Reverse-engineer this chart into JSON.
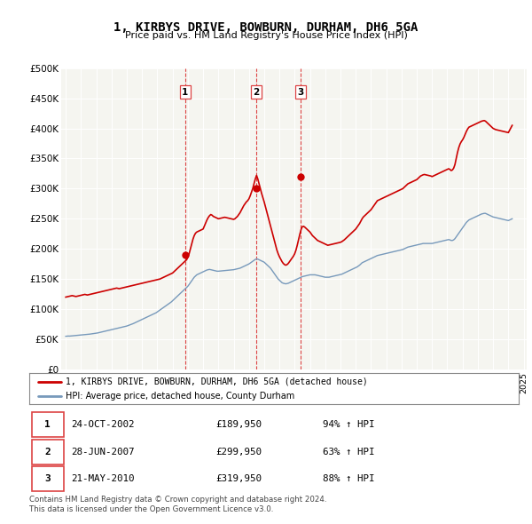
{
  "title": "1, KIRBYS DRIVE, BOWBURN, DURHAM, DH6 5GA",
  "subtitle": "Price paid vs. HM Land Registry's House Price Index (HPI)",
  "background_color": "#ffffff",
  "plot_bg_color": "#f5f5f0",
  "red_color": "#cc0000",
  "blue_color": "#7799bb",
  "vline_color": "#dd4444",
  "legend_label_red": "1, KIRBYS DRIVE, BOWBURN, DURHAM, DH6 5GA (detached house)",
  "legend_label_blue": "HPI: Average price, detached house, County Durham",
  "ylim": [
    0,
    500000
  ],
  "yticks": [
    0,
    50000,
    100000,
    150000,
    200000,
    250000,
    300000,
    350000,
    400000,
    450000,
    500000
  ],
  "ytick_labels": [
    "£0",
    "£50K",
    "£100K",
    "£150K",
    "£200K",
    "£250K",
    "£300K",
    "£350K",
    "£400K",
    "£450K",
    "£500K"
  ],
  "transactions": [
    {
      "num": 1,
      "date": "24-OCT-2002",
      "price": 189950,
      "pct": "94%",
      "dir": "↑",
      "x": 2002.82
    },
    {
      "num": 2,
      "date": "28-JUN-2007",
      "price": 299950,
      "pct": "63%",
      "dir": "↑",
      "x": 2007.49
    },
    {
      "num": 3,
      "date": "21-MAY-2010",
      "price": 319950,
      "pct": "88%",
      "dir": "↑",
      "x": 2010.38
    }
  ],
  "footer_line1": "Contains HM Land Registry data © Crown copyright and database right 2024.",
  "footer_line2": "This data is licensed under the Open Government Licence v3.0.",
  "hpi_y_by_year": {
    "1995": [
      55000,
      55200,
      55400,
      55300,
      55500,
      55700,
      55900,
      56100,
      56300,
      56500,
      56700,
      56900
    ],
    "1996": [
      57100,
      57300,
      57500,
      57700,
      57900,
      58100,
      58300,
      58600,
      58900,
      59200,
      59500,
      59800
    ],
    "1997": [
      60100,
      60500,
      61000,
      61500,
      62000,
      62500,
      63000,
      63500,
      64000,
      64500,
      65000,
      65500
    ],
    "1998": [
      66000,
      66500,
      67000,
      67500,
      68000,
      68500,
      69000,
      69500,
      70000,
      70500,
      71000,
      71500
    ],
    "1999": [
      72000,
      72800,
      73600,
      74400,
      75200,
      76000,
      77000,
      78000,
      79000,
      80000,
      81000,
      82000
    ],
    "2000": [
      83000,
      84000,
      85000,
      86000,
      87000,
      88000,
      89000,
      90000,
      91000,
      92000,
      93000,
      94000
    ],
    "2001": [
      95500,
      97000,
      98500,
      100000,
      101500,
      103000,
      104500,
      106000,
      107500,
      109000,
      110500,
      112000
    ],
    "2002": [
      114000,
      116000,
      118000,
      120000,
      122000,
      124000,
      126000,
      128000,
      130000,
      132000,
      134000,
      136000
    ],
    "2003": [
      138000,
      141000,
      144000,
      147000,
      150000,
      153000,
      155000,
      157000,
      158000,
      159000,
      160000,
      161000
    ],
    "2004": [
      162000,
      163000,
      164000,
      165000,
      165500,
      166000,
      165500,
      165000,
      164500,
      164000,
      163500,
      163000
    ],
    "2005": [
      163000,
      163200,
      163400,
      163600,
      163800,
      164000,
      164200,
      164400,
      164600,
      164800,
      165000,
      165200
    ],
    "2006": [
      165500,
      166000,
      166500,
      167000,
      167500,
      168000,
      169000,
      170000,
      171000,
      172000,
      173000,
      174000
    ],
    "2007": [
      175000,
      176500,
      178000,
      179500,
      181000,
      182500,
      183500,
      183000,
      182000,
      181000,
      180000,
      179000
    ],
    "2008": [
      178000,
      176000,
      174000,
      172000,
      170000,
      168000,
      165000,
      162000,
      159000,
      156000,
      153000,
      150000
    ],
    "2009": [
      148000,
      146000,
      144000,
      143000,
      142500,
      142000,
      142500,
      143000,
      144000,
      145000,
      146000,
      147000
    ],
    "2010": [
      148000,
      149000,
      150000,
      151000,
      152000,
      153000,
      154000,
      154500,
      155000,
      155500,
      156000,
      156500
    ],
    "2011": [
      157000,
      157000,
      157000,
      157000,
      157000,
      156500,
      156000,
      155500,
      155000,
      154500,
      154000,
      153500
    ],
    "2012": [
      153000,
      153000,
      153000,
      153000,
      153500,
      154000,
      154500,
      155000,
      155500,
      156000,
      156500,
      157000
    ],
    "2013": [
      157500,
      158000,
      159000,
      160000,
      161000,
      162000,
      163000,
      164000,
      165000,
      166000,
      167000,
      168000
    ],
    "2014": [
      169000,
      170000,
      171500,
      173000,
      175000,
      177000,
      178000,
      179000,
      180000,
      181000,
      182000,
      183000
    ],
    "2015": [
      184000,
      185000,
      186000,
      187000,
      188000,
      189000,
      189500,
      190000,
      190500,
      191000,
      191500,
      192000
    ],
    "2016": [
      192500,
      193000,
      193500,
      194000,
      194500,
      195000,
      195500,
      196000,
      196500,
      197000,
      197500,
      198000
    ],
    "2017": [
      198500,
      199000,
      200000,
      201000,
      202000,
      203000,
      203500,
      204000,
      204500,
      205000,
      205500,
      206000
    ],
    "2018": [
      206500,
      207000,
      207500,
      208000,
      208500,
      209000,
      209000,
      209000,
      209000,
      209000,
      209000,
      209000
    ],
    "2019": [
      209000,
      209500,
      210000,
      210500,
      211000,
      211500,
      212000,
      212500,
      213000,
      213500,
      214000,
      214500
    ],
    "2020": [
      215000,
      215500,
      215000,
      214000,
      214000,
      215000,
      217000,
      220000,
      223000,
      226000,
      229000,
      232000
    ],
    "2021": [
      235000,
      238000,
      241000,
      244000,
      246000,
      248000,
      249000,
      250000,
      251000,
      252000,
      253000,
      254000
    ],
    "2022": [
      255000,
      256000,
      257000,
      258000,
      258500,
      259000,
      259000,
      258000,
      257000,
      256000,
      255000,
      254000
    ],
    "2023": [
      253000,
      252500,
      252000,
      251500,
      251000,
      250500,
      250000,
      249500,
      249000,
      248500,
      248000,
      247500
    ],
    "2024": [
      247000,
      248000,
      249000,
      250000
    ]
  },
  "red_y_by_year": {
    "1995": [
      120000,
      120500,
      121000,
      121500,
      122000,
      122500,
      122000,
      121500,
      121000,
      121500,
      122000,
      122500
    ],
    "1996": [
      123000,
      123500,
      124000,
      124500,
      124000,
      123500,
      124000,
      124500,
      125000,
      125500,
      126000,
      126500
    ],
    "1997": [
      127000,
      127500,
      128000,
      128500,
      129000,
      129500,
      130000,
      130500,
      131000,
      131500,
      132000,
      132500
    ],
    "1998": [
      133000,
      133500,
      134000,
      134500,
      135000,
      134500,
      134000,
      134500,
      135000,
      135500,
      136000,
      136500
    ],
    "1999": [
      137000,
      137500,
      138000,
      138500,
      139000,
      139500,
      140000,
      140500,
      141000,
      141500,
      142000,
      142500
    ],
    "2000": [
      143000,
      143500,
      144000,
      144500,
      145000,
      145500,
      146000,
      146500,
      147000,
      147500,
      148000,
      148500
    ],
    "2001": [
      149000,
      149500,
      150000,
      151000,
      152000,
      153000,
      154000,
      155000,
      156000,
      157000,
      158000,
      159000
    ],
    "2002": [
      160000,
      162000,
      164000,
      166000,
      168000,
      170000,
      172000,
      174000,
      176000,
      178000,
      180000,
      182000
    ],
    "2003": [
      186000,
      192000,
      200000,
      208000,
      216000,
      222000,
      226000,
      228000,
      229000,
      230000,
      231000,
      232000
    ],
    "2004": [
      233000,
      238000,
      243000,
      248000,
      252000,
      255000,
      257000,
      256000,
      254000,
      253000,
      252000,
      251000
    ],
    "2005": [
      250000,
      250500,
      251000,
      251500,
      252000,
      252500,
      252000,
      251500,
      251000,
      250500,
      250000,
      249500
    ],
    "2006": [
      249000,
      250000,
      252000,
      254000,
      257000,
      260000,
      264000,
      268000,
      272000,
      275000,
      278000,
      280000
    ],
    "2007": [
      283000,
      288000,
      294000,
      300000,
      308000,
      316000,
      322000,
      316000,
      308000,
      300000,
      292000,
      285000
    ],
    "2008": [
      278000,
      270000,
      262000,
      254000,
      246000,
      238000,
      230000,
      222000,
      214000,
      206000,
      198000,
      192000
    ],
    "2009": [
      187000,
      183000,
      179000,
      176000,
      174000,
      173000,
      174000,
      176000,
      179000,
      182000,
      185000,
      188000
    ],
    "2010": [
      192000,
      198000,
      206000,
      215000,
      224000,
      232000,
      237000,
      237500,
      236000,
      234000,
      232000,
      230000
    ],
    "2011": [
      228000,
      225000,
      222000,
      220000,
      218000,
      216000,
      214000,
      213000,
      212000,
      211000,
      210000,
      209000
    ],
    "2012": [
      208000,
      207000,
      206000,
      206500,
      207000,
      207500,
      208000,
      208500,
      209000,
      209500,
      210000,
      210500
    ],
    "2013": [
      211000,
      212000,
      213500,
      215000,
      217000,
      219000,
      221000,
      223000,
      225000,
      227000,
      229000,
      231000
    ],
    "2014": [
      233000,
      236000,
      239000,
      242000,
      246000,
      250000,
      253000,
      255000,
      257000,
      259000,
      261000,
      263000
    ],
    "2015": [
      265000,
      268000,
      271000,
      274000,
      277000,
      280000,
      281000,
      282000,
      283000,
      284000,
      285000,
      286000
    ],
    "2016": [
      287000,
      288000,
      289000,
      290000,
      291000,
      292000,
      293000,
      294000,
      295000,
      296000,
      297000,
      298000
    ],
    "2017": [
      299000,
      300000,
      302000,
      304000,
      306000,
      308000,
      309000,
      310000,
      311000,
      312000,
      313000,
      314000
    ],
    "2018": [
      315000,
      317000,
      319000,
      321000,
      322000,
      323000,
      323500,
      323000,
      322500,
      322000,
      321500,
      321000
    ],
    "2019": [
      320000,
      321000,
      322000,
      323000,
      324000,
      325000,
      326000,
      327000,
      328000,
      329000,
      330000,
      331000
    ],
    "2020": [
      332000,
      333000,
      332000,
      330000,
      331000,
      334000,
      340000,
      350000,
      360000,
      368000,
      374000,
      378000
    ],
    "2021": [
      381000,
      385000,
      390000,
      395000,
      399000,
      402000,
      403000,
      404000,
      405000,
      406000,
      407000,
      408000
    ],
    "2022": [
      409000,
      410000,
      411000,
      412000,
      412500,
      413000,
      412000,
      410000,
      408000,
      406000,
      404000,
      402000
    ],
    "2023": [
      400000,
      399000,
      398000,
      397500,
      397000,
      396500,
      396000,
      395500,
      395000,
      394500,
      394000,
      393500
    ],
    "2024": [
      393000,
      397000,
      401000,
      405000
    ]
  }
}
